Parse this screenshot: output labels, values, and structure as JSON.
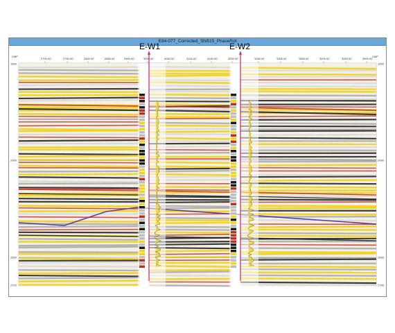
{
  "window": {
    "title": "E84-077_Corrected_Shift15_PhaseRot"
  },
  "axis": {
    "left_label": "CMP",
    "right_label": "CMP",
    "top_ticks": [
      "2700.00",
      "2750.00",
      "2800.00",
      "2850.00",
      "2900.00",
      "3000.00",
      "3050.00",
      "3100.00",
      "3150.00",
      "3200.00",
      "3250.00",
      "3300.00",
      "3350.00",
      "3400.00",
      "3450.00",
      "3500.00"
    ],
    "time_ticks": [
      "1900",
      "2000",
      "2500",
      "2700"
    ]
  },
  "wells": [
    {
      "name": "E-W1"
    },
    {
      "name": "E-W2"
    }
  ],
  "colors": {
    "title_bar": "#6aa7d8",
    "positive_amplitude": "#f2d21b",
    "strong_positive": "#c62a1a",
    "negative_amplitude": "#1a1a1a",
    "horizon_pick": "#5b3a9e",
    "well_path": "#c0357a"
  }
}
